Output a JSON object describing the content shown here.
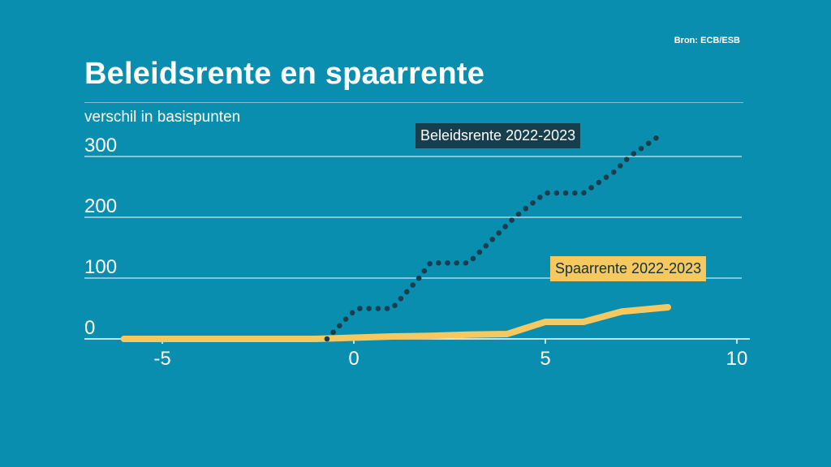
{
  "source": "Bron: ECB/ESB",
  "title": "Beleidsrente en spaarrente",
  "subtitle": "verschil in basispunten",
  "colors": {
    "background": "#0a8eb0",
    "policy": "#173e4d",
    "savings": "#f5c860",
    "grid": "#ffffff"
  },
  "chart_data": {
    "type": "line",
    "title": "Beleidsrente en spaarrente",
    "ylabel": "verschil in basispunten",
    "xlabel": "",
    "xlim": [
      -7,
      10
    ],
    "ylim": [
      0,
      300
    ],
    "xticks": [
      -5,
      0,
      5,
      10
    ],
    "yticks": [
      0,
      100,
      200,
      300
    ],
    "series": [
      {
        "name": "Beleidsrente 2022-2023",
        "style": "dotted",
        "color": "#173e4d",
        "x": [
          -0.7,
          -0.1,
          0.1,
          1.0,
          1.7,
          2.0,
          3.0,
          3.8,
          4.2,
          5.0,
          6.0,
          6.8,
          7.2,
          8.0
        ],
        "y": [
          0,
          40,
          50,
          50,
          100,
          125,
          125,
          175,
          200,
          240,
          240,
          275,
          300,
          335
        ]
      },
      {
        "name": "Spaarrente 2022-2023",
        "style": "solid",
        "color": "#f5c860",
        "x": [
          -6,
          -1,
          0,
          1,
          2,
          3,
          4,
          5,
          6,
          7,
          8.2
        ],
        "y": [
          0,
          0,
          2,
          4,
          5,
          7,
          8,
          28,
          28,
          45,
          52
        ]
      }
    ]
  }
}
